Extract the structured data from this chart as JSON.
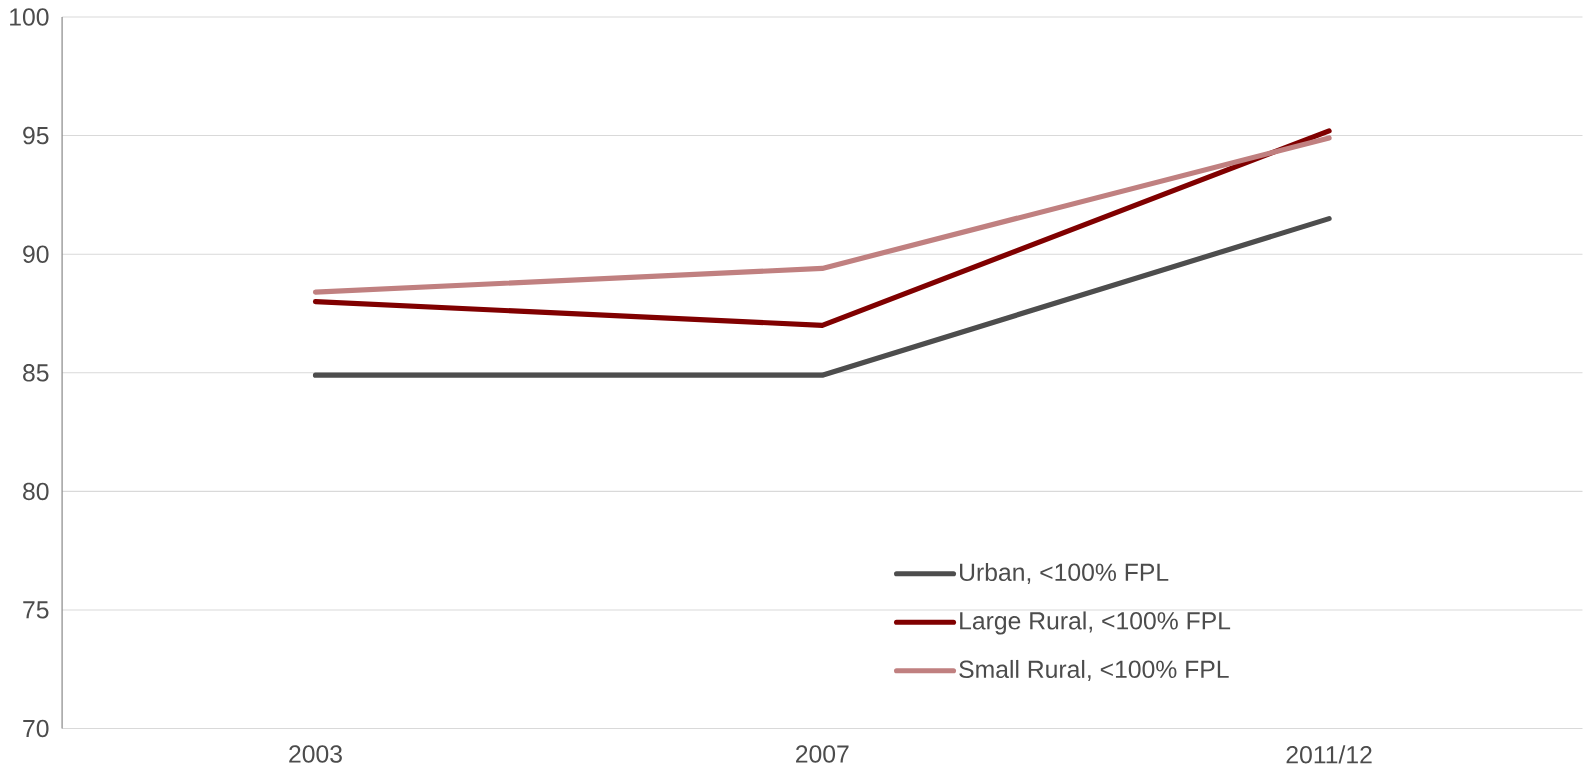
{
  "chart_data": {
    "type": "line",
    "categories": [
      "2003",
      "2007",
      "2011/12"
    ],
    "series": [
      {
        "name": "Urban, <100% FPL",
        "color": "#4d4d4d",
        "values": [
          84.9,
          84.9,
          91.5
        ]
      },
      {
        "name": "Large Rural, <100% FPL",
        "color": "#800000",
        "values": [
          88.0,
          87.0,
          95.2
        ]
      },
      {
        "name": "Small Rural, <100% FPL",
        "color": "#c08080",
        "values": [
          88.4,
          89.4,
          94.9
        ]
      }
    ],
    "ylim": [
      70,
      100
    ],
    "yticks": [
      70,
      75,
      80,
      85,
      90,
      95,
      100
    ],
    "grid": "y",
    "legend": "bottom right",
    "marker": "none",
    "line_style": "solid"
  }
}
